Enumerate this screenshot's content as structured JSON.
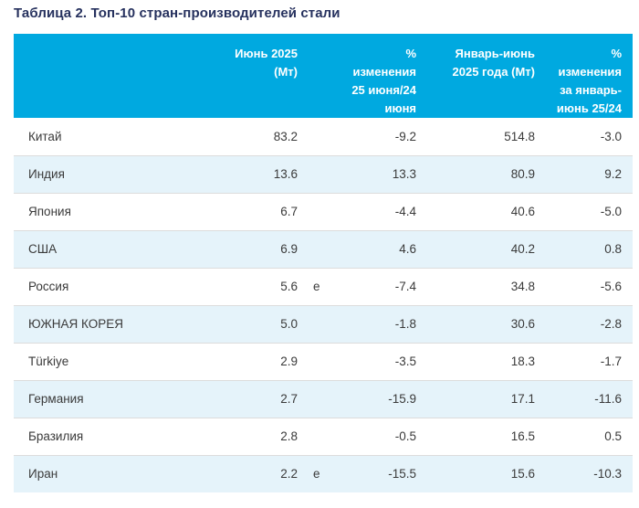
{
  "page": {
    "title": "Таблица 2. Топ-10 стран-производителей стали"
  },
  "table": {
    "header": {
      "country": "",
      "june": "Июнь 2025\n(Мт)",
      "note": "",
      "chg_june": "%\nизменения\n25 июня/24\nиюня",
      "half_year": "Январь-июнь\n2025 года (Мт)",
      "chg_half": "%\nизменения\nза январь-\nиюнь 25/24"
    },
    "rows": [
      {
        "country": "Китай",
        "june": "83.2",
        "note": "",
        "chg_june": "-9.2",
        "half_year": "514.8",
        "chg_half": "-3.0"
      },
      {
        "country": "Индия",
        "june": "13.6",
        "note": "",
        "chg_june": "13.3",
        "half_year": "80.9",
        "chg_half": "9.2"
      },
      {
        "country": "Япония",
        "june": "6.7",
        "note": "",
        "chg_june": "-4.4",
        "half_year": "40.6",
        "chg_half": "-5.0"
      },
      {
        "country": "США",
        "june": "6.9",
        "note": "",
        "chg_june": "4.6",
        "half_year": "40.2",
        "chg_half": "0.8"
      },
      {
        "country": "Россия",
        "june": "5.6",
        "note": "e",
        "chg_june": "-7.4",
        "half_year": "34.8",
        "chg_half": "-5.6"
      },
      {
        "country": "ЮЖНАЯ КОРЕЯ",
        "june": "5.0",
        "note": "",
        "chg_june": "-1.8",
        "half_year": "30.6",
        "chg_half": "-2.8"
      },
      {
        "country": "Türkiye",
        "june": "2.9",
        "note": "",
        "chg_june": "-3.5",
        "half_year": "18.3",
        "chg_half": "-1.7"
      },
      {
        "country": "Германия",
        "june": "2.7",
        "note": "",
        "chg_june": "-15.9",
        "half_year": "17.1",
        "chg_half": "-11.6"
      },
      {
        "country": "Бразилия",
        "june": "2.8",
        "note": "",
        "chg_june": "-0.5",
        "half_year": "16.5",
        "chg_half": "0.5"
      },
      {
        "country": "Иран",
        "june": "2.2",
        "note": "e",
        "chg_june": "-15.5",
        "half_year": "15.6",
        "chg_half": "-10.3"
      }
    ]
  },
  "colors": {
    "header_bg": "#00a9e0",
    "header_text": "#ffffff",
    "row_alt_bg": "#e5f3fa",
    "row_border": "#dcdcdc",
    "title_text": "#26315e",
    "cell_text": "#3a3a3a"
  },
  "chart_data": {
    "type": "table",
    "title": "Таблица 2. Топ-10 стран-производителей стали",
    "columns": [
      "",
      "Июнь 2025 (Мт)",
      "",
      "% изменения 25 июня/24 июня",
      "Январь-июнь 2025 года (Мт)",
      "% изменения за январь-июнь 25/24"
    ],
    "rows": [
      [
        "Китай",
        83.2,
        "",
        -9.2,
        514.8,
        -3.0
      ],
      [
        "Индия",
        13.6,
        "",
        13.3,
        80.9,
        9.2
      ],
      [
        "Япония",
        6.7,
        "",
        -4.4,
        40.6,
        -5.0
      ],
      [
        "США",
        6.9,
        "",
        4.6,
        40.2,
        0.8
      ],
      [
        "Россия",
        5.6,
        "e",
        -7.4,
        34.8,
        -5.6
      ],
      [
        "ЮЖНАЯ КОРЕЯ",
        5.0,
        "",
        -1.8,
        30.6,
        -2.8
      ],
      [
        "Türkiye",
        2.9,
        "",
        -3.5,
        18.3,
        -1.7
      ],
      [
        "Германия",
        2.7,
        "",
        -15.9,
        17.1,
        -11.6
      ],
      [
        "Бразилия",
        2.8,
        "",
        -0.5,
        16.5,
        0.5
      ],
      [
        "Иран",
        2.2,
        "e",
        -15.5,
        15.6,
        -10.3
      ]
    ]
  }
}
